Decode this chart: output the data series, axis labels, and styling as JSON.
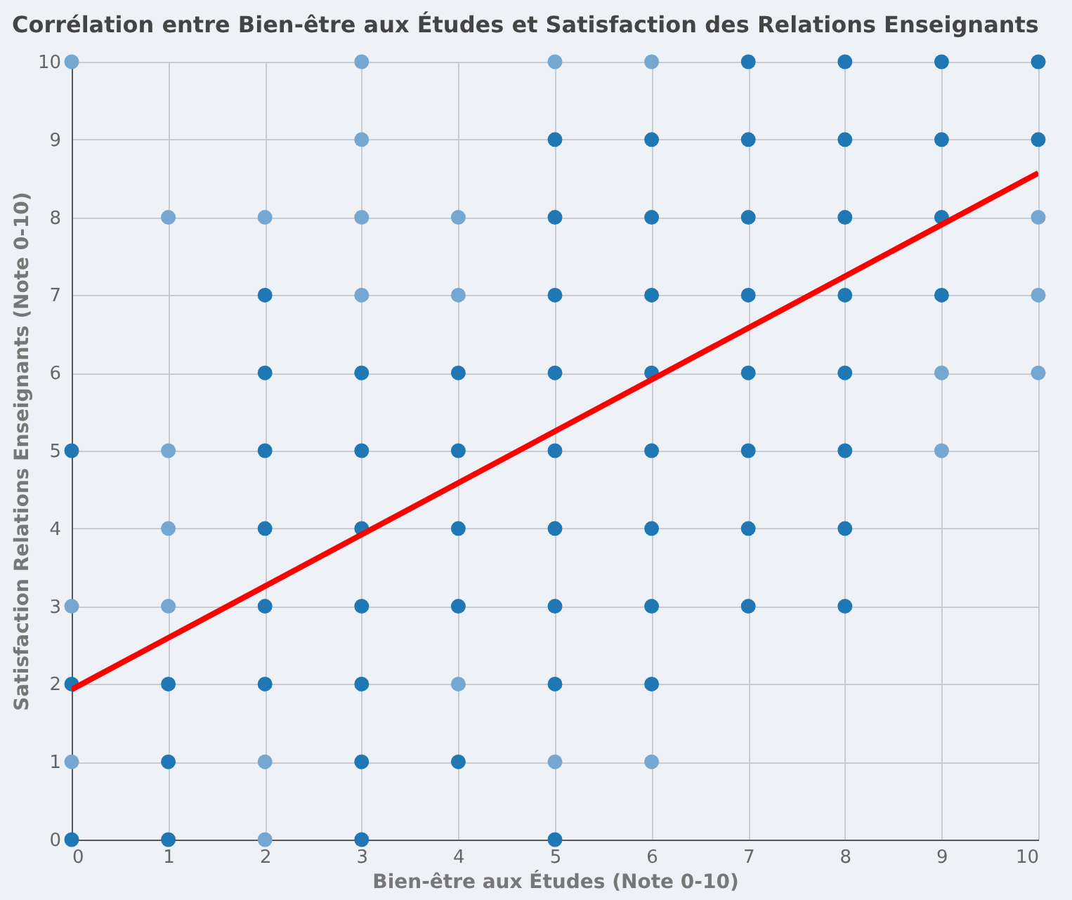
{
  "chart_data": {
    "type": "scatter",
    "title": "Corrélation entre Bien-être aux Études et Satisfaction des Relations Enseignants",
    "xlabel": "Bien-être aux Études (Note 0-10)",
    "ylabel": "Satisfaction Relations Enseignants (Note 0-10)",
    "xlim": [
      0,
      10
    ],
    "ylim": [
      0,
      10
    ],
    "xticks": [
      0,
      1,
      2,
      3,
      4,
      5,
      6,
      7,
      8,
      9,
      10
    ],
    "yticks": [
      0,
      1,
      2,
      3,
      4,
      5,
      6,
      7,
      8,
      9,
      10
    ],
    "grid": true,
    "series": [
      {
        "marker": "circle",
        "x": [
          0,
          0,
          0,
          0,
          0,
          0,
          1,
          1,
          1,
          1,
          1,
          1,
          1,
          2,
          2,
          2,
          2,
          2,
          2,
          2,
          2,
          2,
          3,
          3,
          3,
          3,
          3,
          3,
          3,
          3,
          3,
          3,
          3,
          4,
          4,
          4,
          4,
          4,
          4,
          4,
          4,
          5,
          5,
          5,
          5,
          5,
          5,
          5,
          5,
          5,
          5,
          5,
          6,
          6,
          6,
          6,
          6,
          6,
          6,
          6,
          6,
          6,
          7,
          7,
          7,
          7,
          7,
          7,
          7,
          7,
          8,
          8,
          8,
          8,
          8,
          8,
          8,
          8,
          9,
          9,
          9,
          9,
          9,
          9,
          10,
          10,
          10,
          10,
          10
        ],
        "values": [
          0,
          1,
          2,
          3,
          5,
          10,
          0,
          1,
          2,
          3,
          4,
          5,
          8,
          0,
          1,
          2,
          3,
          4,
          5,
          6,
          7,
          8,
          0,
          1,
          2,
          3,
          4,
          5,
          6,
          7,
          8,
          9,
          10,
          1,
          2,
          3,
          4,
          5,
          6,
          7,
          8,
          0,
          1,
          2,
          3,
          4,
          5,
          6,
          7,
          8,
          9,
          10,
          1,
          2,
          3,
          4,
          5,
          6,
          7,
          8,
          9,
          10,
          3,
          4,
          5,
          6,
          7,
          8,
          9,
          10,
          3,
          4,
          5,
          6,
          7,
          8,
          9,
          10,
          5,
          6,
          7,
          8,
          9,
          10,
          6,
          7,
          8,
          9,
          10
        ],
        "colors": [
          "#1f77b4",
          "#75a7d0",
          "#1f77b4",
          "#75a7d0",
          "#1f77b4",
          "#75a7d0",
          "#1f77b4",
          "#1f77b4",
          "#1f77b4",
          "#75a7d0",
          "#75a7d0",
          "#75a7d0",
          "#75a7d0",
          "#75a7d0",
          "#75a7d0",
          "#1f77b4",
          "#1f77b4",
          "#1f77b4",
          "#1f77b4",
          "#1f77b4",
          "#1f77b4",
          "#75a7d0",
          "#1f77b4",
          "#1f77b4",
          "#1f77b4",
          "#1f77b4",
          "#1f77b4",
          "#1f77b4",
          "#1f77b4",
          "#75a7d0",
          "#75a7d0",
          "#75a7d0",
          "#75a7d0",
          "#1f77b4",
          "#75a7d0",
          "#1f77b4",
          "#1f77b4",
          "#1f77b4",
          "#1f77b4",
          "#75a7d0",
          "#75a7d0",
          "#1f77b4",
          "#75a7d0",
          "#1f77b4",
          "#1f77b4",
          "#1f77b4",
          "#1f77b4",
          "#1f77b4",
          "#1f77b4",
          "#1f77b4",
          "#1f77b4",
          "#75a7d0",
          "#75a7d0",
          "#1f77b4",
          "#1f77b4",
          "#1f77b4",
          "#1f77b4",
          "#1f77b4",
          "#1f77b4",
          "#1f77b4",
          "#1f77b4",
          "#75a7d0",
          "#1f77b4",
          "#1f77b4",
          "#1f77b4",
          "#1f77b4",
          "#1f77b4",
          "#1f77b4",
          "#1f77b4",
          "#1f77b4",
          "#1f77b4",
          "#1f77b4",
          "#1f77b4",
          "#1f77b4",
          "#1f77b4",
          "#1f77b4",
          "#1f77b4",
          "#1f77b4",
          "#75a7d0",
          "#75a7d0",
          "#1f77b4",
          "#1f77b4",
          "#1f77b4",
          "#1f77b4",
          "#75a7d0",
          "#75a7d0",
          "#75a7d0",
          "#1f77b4",
          "#1f77b4"
        ]
      },
      {
        "type": "line",
        "color": "#ff0000",
        "line_style": "solid",
        "x": [
          0,
          10
        ],
        "values": [
          1.93,
          8.57
        ]
      }
    ]
  }
}
